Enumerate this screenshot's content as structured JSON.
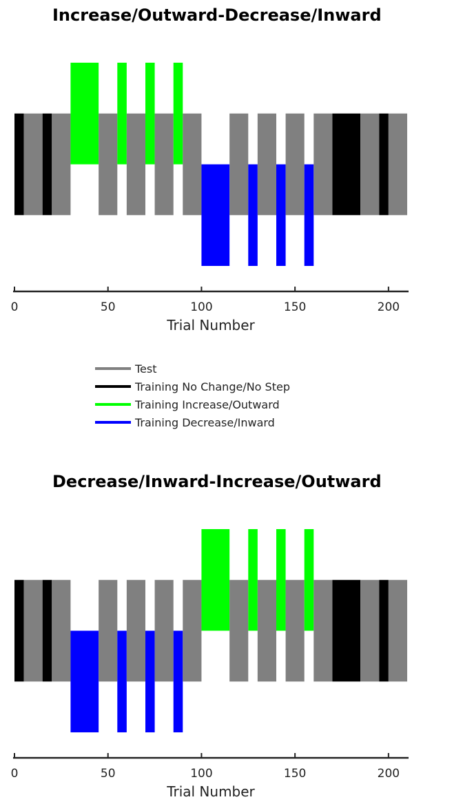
{
  "colors": {
    "test": "#808080",
    "nochange": "#000000",
    "increase": "#00ff00",
    "decrease": "#0000ff"
  },
  "legend": [
    {
      "key": "test",
      "label": "Test"
    },
    {
      "key": "nochange",
      "label": "Training No Change/No Step"
    },
    {
      "key": "increase",
      "label": "Training Increase/Outward"
    },
    {
      "key": "decrease",
      "label": "Training Decrease/Inward"
    }
  ],
  "chart_data": [
    {
      "type": "bar",
      "title": "Increase/Outward-Decrease/Inward",
      "xlabel": "Trial Number",
      "xlim": [
        0,
        210
      ],
      "xticks": [
        0,
        50,
        100,
        150,
        200
      ],
      "levels": {
        "increase": [
          0,
          2
        ],
        "baseline": [
          -1,
          1
        ],
        "decrease": [
          -2,
          0
        ]
      },
      "segments": [
        {
          "start": 0,
          "end": 5,
          "kind": "nochange"
        },
        {
          "start": 5,
          "end": 15,
          "kind": "test"
        },
        {
          "start": 15,
          "end": 20,
          "kind": "nochange"
        },
        {
          "start": 20,
          "end": 30,
          "kind": "test"
        },
        {
          "start": 30,
          "end": 45,
          "kind": "increase"
        },
        {
          "start": 45,
          "end": 55,
          "kind": "test"
        },
        {
          "start": 55,
          "end": 60,
          "kind": "increase"
        },
        {
          "start": 60,
          "end": 70,
          "kind": "test"
        },
        {
          "start": 70,
          "end": 75,
          "kind": "increase"
        },
        {
          "start": 75,
          "end": 85,
          "kind": "test"
        },
        {
          "start": 85,
          "end": 90,
          "kind": "increase"
        },
        {
          "start": 90,
          "end": 100,
          "kind": "test"
        },
        {
          "start": 100,
          "end": 115,
          "kind": "decrease"
        },
        {
          "start": 115,
          "end": 125,
          "kind": "test"
        },
        {
          "start": 125,
          "end": 130,
          "kind": "decrease"
        },
        {
          "start": 130,
          "end": 140,
          "kind": "test"
        },
        {
          "start": 140,
          "end": 145,
          "kind": "decrease"
        },
        {
          "start": 145,
          "end": 155,
          "kind": "test"
        },
        {
          "start": 155,
          "end": 160,
          "kind": "decrease"
        },
        {
          "start": 160,
          "end": 170,
          "kind": "test"
        },
        {
          "start": 170,
          "end": 185,
          "kind": "nochange"
        },
        {
          "start": 185,
          "end": 195,
          "kind": "test"
        },
        {
          "start": 195,
          "end": 200,
          "kind": "nochange"
        },
        {
          "start": 200,
          "end": 210,
          "kind": "test"
        }
      ]
    },
    {
      "type": "bar",
      "title": "Decrease/Inward-Increase/Outward",
      "xlabel": "Trial Number",
      "xlim": [
        0,
        210
      ],
      "xticks": [
        0,
        50,
        100,
        150,
        200
      ],
      "levels": {
        "increase": [
          0,
          2
        ],
        "baseline": [
          -1,
          1
        ],
        "decrease": [
          -2,
          0
        ]
      },
      "segments": [
        {
          "start": 0,
          "end": 5,
          "kind": "nochange"
        },
        {
          "start": 5,
          "end": 15,
          "kind": "test"
        },
        {
          "start": 15,
          "end": 20,
          "kind": "nochange"
        },
        {
          "start": 20,
          "end": 30,
          "kind": "test"
        },
        {
          "start": 30,
          "end": 45,
          "kind": "decrease"
        },
        {
          "start": 45,
          "end": 55,
          "kind": "test"
        },
        {
          "start": 55,
          "end": 60,
          "kind": "decrease"
        },
        {
          "start": 60,
          "end": 70,
          "kind": "test"
        },
        {
          "start": 70,
          "end": 75,
          "kind": "decrease"
        },
        {
          "start": 75,
          "end": 85,
          "kind": "test"
        },
        {
          "start": 85,
          "end": 90,
          "kind": "decrease"
        },
        {
          "start": 90,
          "end": 100,
          "kind": "test"
        },
        {
          "start": 100,
          "end": 115,
          "kind": "increase"
        },
        {
          "start": 115,
          "end": 125,
          "kind": "test"
        },
        {
          "start": 125,
          "end": 130,
          "kind": "increase"
        },
        {
          "start": 130,
          "end": 140,
          "kind": "test"
        },
        {
          "start": 140,
          "end": 145,
          "kind": "increase"
        },
        {
          "start": 145,
          "end": 155,
          "kind": "test"
        },
        {
          "start": 155,
          "end": 160,
          "kind": "increase"
        },
        {
          "start": 160,
          "end": 170,
          "kind": "test"
        },
        {
          "start": 170,
          "end": 185,
          "kind": "nochange"
        },
        {
          "start": 185,
          "end": 195,
          "kind": "test"
        },
        {
          "start": 195,
          "end": 200,
          "kind": "nochange"
        },
        {
          "start": 200,
          "end": 210,
          "kind": "test"
        }
      ]
    }
  ]
}
